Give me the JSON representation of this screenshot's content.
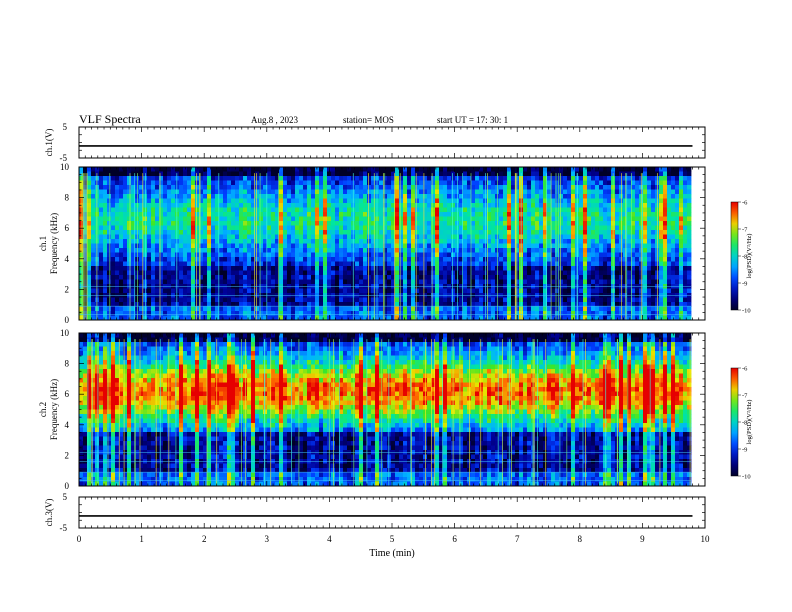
{
  "header": {
    "title": "VLF Spectra",
    "date": "Aug.8  , 2023",
    "station": "station= MOS",
    "start": "start  UT  =    17: 30: 1"
  },
  "chart_data": [
    {
      "type": "line",
      "panel": "ch1-signal",
      "ylabel": "ch.1(V)",
      "ylim": [
        -5,
        5
      ],
      "yticks": [
        "5",
        "-5"
      ],
      "series": [
        {
          "x": [
            0,
            9.8
          ],
          "values": [
            -1.1,
            -1.1
          ]
        }
      ]
    },
    {
      "type": "heatmap",
      "panel": "ch1-spectrogram",
      "ylabel_top": "ch.1",
      "ylabel": "Frequency  (kHz)",
      "ylim": [
        0,
        10
      ],
      "yticks": [
        "0",
        "2",
        "4",
        "6",
        "8",
        "10"
      ],
      "xlim": [
        0,
        9.8
      ],
      "band_center_khz": 6.5,
      "band_intensity": 0.45,
      "colorbar": {
        "label": "log(PSD)(V²/Hz)",
        "ticks": [
          "-6",
          "-7",
          "-8",
          "-9",
          "-10"
        ],
        "range": [
          -10,
          -6
        ]
      }
    },
    {
      "type": "heatmap",
      "panel": "ch2-spectrogram",
      "ylabel_top": "ch.2",
      "ylabel": "Frequency  (kHz)",
      "ylim": [
        0,
        10
      ],
      "yticks": [
        "0",
        "2",
        "4",
        "6",
        "8",
        "10"
      ],
      "xlim": [
        0,
        9.8
      ],
      "band_center_khz": 6.2,
      "band_intensity": 0.85,
      "colorbar": {
        "label": "log(PSD)(V²/Hz)",
        "ticks": [
          "-6",
          "-7",
          "-8",
          "-9",
          "-10"
        ],
        "range": [
          -10,
          -6
        ]
      }
    },
    {
      "type": "line",
      "panel": "ch3-signal",
      "ylabel": "ch.3(V)",
      "ylim": [
        -5,
        5
      ],
      "yticks": [
        "5",
        "-5"
      ],
      "series": [
        {
          "x": [
            0,
            9.8
          ],
          "values": [
            -1.1,
            -1.1
          ]
        }
      ]
    }
  ],
  "xaxis": {
    "label": "Time  (min)",
    "ticks": [
      "0",
      "1",
      "2",
      "3",
      "4",
      "5",
      "6",
      "7",
      "8",
      "9",
      "10"
    ],
    "range": [
      0,
      10
    ]
  }
}
